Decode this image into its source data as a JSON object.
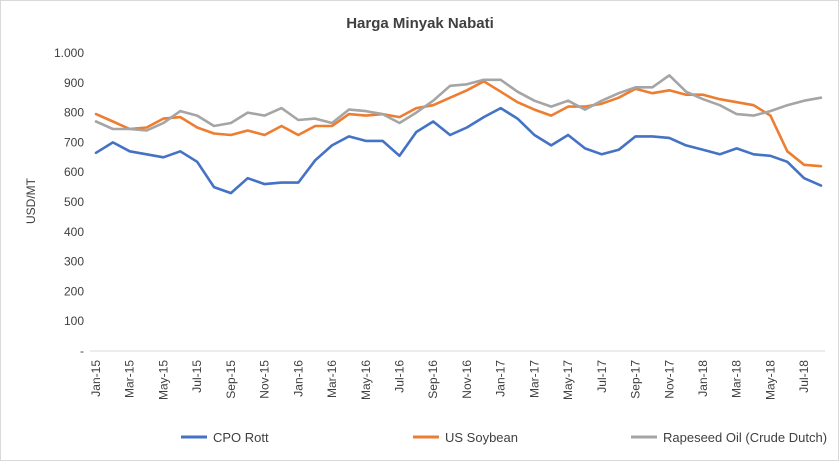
{
  "chart_data": {
    "type": "line",
    "title": "Harga Minyak Nabati",
    "xlabel": "",
    "ylabel": "USD/MT",
    "ylim": [
      0,
      1000
    ],
    "yticks": [
      "-",
      "100",
      "200",
      "300",
      "400",
      "500",
      "600",
      "700",
      "800",
      "900",
      "1.000"
    ],
    "grid": "none",
    "legend_position": "bottom",
    "x_tick_labels": [
      "Jan-15",
      "Mar-15",
      "May-15",
      "Jul-15",
      "Sep-15",
      "Nov-15",
      "Jan-16",
      "Mar-16",
      "May-16",
      "Jul-16",
      "Sep-16",
      "Nov-16",
      "Jan-17",
      "Mar-17",
      "May-17",
      "Jul-17",
      "Sep-17",
      "Nov-17",
      "Jan-18",
      "Mar-18",
      "May-18",
      "Jul-18"
    ],
    "x": [
      "Jan-15",
      "Feb-15",
      "Mar-15",
      "Apr-15",
      "May-15",
      "Jun-15",
      "Jul-15",
      "Aug-15",
      "Sep-15",
      "Oct-15",
      "Nov-15",
      "Dec-15",
      "Jan-16",
      "Feb-16",
      "Mar-16",
      "Apr-16",
      "May-16",
      "Jun-16",
      "Jul-16",
      "Aug-16",
      "Sep-16",
      "Oct-16",
      "Nov-16",
      "Dec-16",
      "Jan-17",
      "Feb-17",
      "Mar-17",
      "Apr-17",
      "May-17",
      "Jun-17",
      "Jul-17",
      "Aug-17",
      "Sep-17",
      "Oct-17",
      "Nov-17",
      "Dec-17",
      "Jan-18",
      "Feb-18",
      "Mar-18",
      "Apr-18",
      "May-18",
      "Jun-18",
      "Jul-18",
      "Aug-18"
    ],
    "series": [
      {
        "name": "CPO Rott",
        "color": "#4472C4",
        "values": [
          665,
          700,
          670,
          660,
          650,
          670,
          635,
          550,
          530,
          580,
          560,
          565,
          565,
          640,
          690,
          720,
          705,
          705,
          655,
          735,
          770,
          725,
          750,
          785,
          815,
          780,
          725,
          690,
          725,
          680,
          660,
          675,
          720,
          720,
          715,
          690,
          675,
          660,
          680,
          660,
          655,
          635,
          580,
          555
        ]
      },
      {
        "name": "US Soybean",
        "color": "#ED7D31",
        "values": [
          795,
          770,
          745,
          750,
          780,
          785,
          750,
          730,
          725,
          740,
          725,
          755,
          725,
          755,
          755,
          795,
          790,
          795,
          785,
          815,
          825,
          850,
          875,
          905,
          870,
          835,
          810,
          790,
          820,
          820,
          830,
          850,
          880,
          865,
          875,
          860,
          860,
          845,
          835,
          825,
          790,
          670,
          625,
          620
        ]
      },
      {
        "name": "Rapeseed Oil (Crude Dutch)",
        "color": "#A5A5A5",
        "values": [
          770,
          745,
          745,
          740,
          765,
          805,
          790,
          755,
          765,
          800,
          790,
          815,
          775,
          780,
          765,
          810,
          805,
          795,
          765,
          800,
          840,
          890,
          895,
          910,
          910,
          870,
          840,
          820,
          840,
          810,
          840,
          865,
          885,
          885,
          925,
          870,
          845,
          825,
          795,
          790,
          805,
          825,
          840,
          850
        ]
      }
    ]
  }
}
